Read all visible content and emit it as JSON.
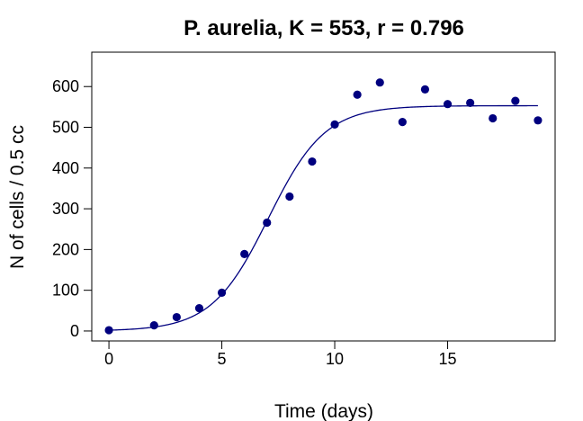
{
  "chart_data": {
    "type": "scatter",
    "title": "P. aurelia, K = 553, r = 0.796",
    "xlabel": "Time (days)",
    "ylabel": "N of cells / 0.5 cc",
    "xlim": [
      -0.76,
      19.76
    ],
    "ylim": [
      -24.4,
      684.4
    ],
    "x_ticks": [
      0,
      5,
      10,
      15
    ],
    "y_ticks": [
      0,
      100,
      200,
      300,
      400,
      500,
      600
    ],
    "grid": false,
    "legend": "none",
    "series": [
      {
        "type": "scatter",
        "color": "#00007f",
        "points": [
          {
            "x": 0,
            "y": 2
          },
          {
            "x": 2,
            "y": 14
          },
          {
            "x": 3,
            "y": 34
          },
          {
            "x": 4,
            "y": 56
          },
          {
            "x": 5,
            "y": 94
          },
          {
            "x": 6,
            "y": 189
          },
          {
            "x": 7,
            "y": 266
          },
          {
            "x": 8,
            "y": 330
          },
          {
            "x": 9,
            "y": 416
          },
          {
            "x": 10,
            "y": 507
          },
          {
            "x": 11,
            "y": 580
          },
          {
            "x": 12,
            "y": 610
          },
          {
            "x": 13,
            "y": 513
          },
          {
            "x": 14,
            "y": 593
          },
          {
            "x": 15,
            "y": 557
          },
          {
            "x": 16,
            "y": 560
          },
          {
            "x": 17,
            "y": 522
          },
          {
            "x": 18,
            "y": 565
          },
          {
            "x": 19,
            "y": 517
          }
        ]
      },
      {
        "type": "line",
        "color": "#00007f",
        "model": "logistic",
        "K": 553,
        "r": 0.796,
        "N0": 2,
        "x_range": [
          0,
          19
        ]
      }
    ]
  }
}
